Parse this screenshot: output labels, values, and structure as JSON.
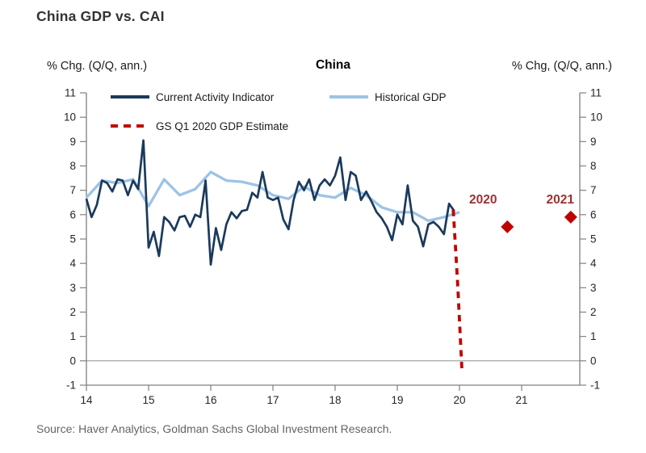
{
  "header": {
    "title": "China GDP vs. CAI"
  },
  "chart": {
    "panel_title": "China",
    "left_axis_title": "% Chg. (Q/Q, ann.)",
    "right_axis_title": "% Chg, (Q/Q, ann.)",
    "legend": [
      {
        "label": "Current Activity Indicator",
        "color": "#1a3a5c",
        "style": "solid"
      },
      {
        "label": "Historical GDP",
        "color": "#9dc3e6",
        "style": "solid"
      },
      {
        "label": "GS Q1 2020 GDP Estimate",
        "color": "#c00000",
        "style": "dashed"
      }
    ],
    "colors": {
      "axis": "#808080",
      "zero_line": "#9a9a9a",
      "tick_label": "#262626",
      "marker_label": "#9c3234"
    }
  },
  "chart_data": {
    "type": "line",
    "title": "China",
    "ylabel_left": "% Chg. (Q/Q, ann.)",
    "ylabel_right": "% Chg, (Q/Q, ann.)",
    "ylim": [
      -1,
      11
    ],
    "xlim": [
      14,
      21.94
    ],
    "y_ticks": [
      -1,
      0,
      1,
      2,
      3,
      4,
      5,
      6,
      7,
      8,
      9,
      10,
      11
    ],
    "x_ticks": [
      14,
      15,
      16,
      17,
      18,
      19,
      20,
      21
    ],
    "grid": false,
    "legend_position": "top-left-inside",
    "series": [
      {
        "name": "Current Activity Indicator",
        "color": "#1a3a5c",
        "dashed": false,
        "x": [
          14,
          14.083,
          14.167,
          14.25,
          14.333,
          14.417,
          14.5,
          14.583,
          14.667,
          14.75,
          14.833,
          14.917,
          15,
          15.083,
          15.167,
          15.25,
          15.333,
          15.417,
          15.5,
          15.583,
          15.667,
          15.75,
          15.833,
          15.917,
          16,
          16.083,
          16.167,
          16.25,
          16.333,
          16.417,
          16.5,
          16.583,
          16.667,
          16.75,
          16.833,
          16.917,
          17,
          17.083,
          17.167,
          17.25,
          17.333,
          17.417,
          17.5,
          17.583,
          17.667,
          17.75,
          17.833,
          17.917,
          18,
          18.083,
          18.167,
          18.25,
          18.333,
          18.417,
          18.5,
          18.583,
          18.667,
          18.75,
          18.833,
          18.917,
          19,
          19.083,
          19.167,
          19.25,
          19.333,
          19.417,
          19.5,
          19.583,
          19.667,
          19.75,
          19.833,
          19.917
        ],
        "values": [
          6.65,
          5.9,
          6.4,
          7.4,
          7.3,
          6.95,
          7.45,
          7.4,
          6.8,
          7.4,
          7.05,
          9.05,
          4.65,
          5.3,
          4.3,
          5.9,
          5.7,
          5.35,
          5.9,
          5.95,
          5.5,
          6.0,
          5.9,
          7.4,
          3.95,
          5.45,
          4.55,
          5.6,
          6.1,
          5.85,
          6.15,
          6.2,
          6.9,
          6.7,
          7.75,
          6.7,
          6.6,
          6.7,
          5.8,
          5.4,
          6.6,
          7.35,
          7.0,
          7.45,
          6.6,
          7.2,
          7.45,
          7.2,
          7.6,
          8.35,
          6.6,
          7.75,
          7.6,
          6.6,
          6.95,
          6.55,
          6.1,
          5.85,
          5.5,
          4.95,
          6.0,
          5.6,
          7.2,
          5.75,
          5.5,
          4.7,
          5.6,
          5.7,
          5.5,
          5.2,
          6.45,
          6.15
        ]
      },
      {
        "name": "Historical GDP",
        "color": "#9dc3e6",
        "dashed": false,
        "x": [
          14,
          14.25,
          14.5,
          14.75,
          15,
          15.25,
          15.5,
          15.75,
          16,
          16.25,
          16.5,
          16.75,
          17,
          17.25,
          17.5,
          17.75,
          18,
          18.25,
          18.5,
          18.75,
          19,
          19.25,
          19.5,
          19.75,
          20
        ],
        "values": [
          6.7,
          7.4,
          7.3,
          7.45,
          6.35,
          7.45,
          6.8,
          7.05,
          7.75,
          7.4,
          7.35,
          7.2,
          6.8,
          6.65,
          7.15,
          6.8,
          6.7,
          7.1,
          6.8,
          6.3,
          6.1,
          6.1,
          5.75,
          5.9,
          6.1
        ]
      },
      {
        "name": "GS Q1 2020 GDP Estimate",
        "color": "#c00000",
        "dashed": true,
        "x": [
          19.9,
          19.97,
          20.04
        ],
        "values": [
          6.2,
          3.2,
          -0.4
        ]
      }
    ],
    "point_markers": [
      {
        "label": "2020",
        "x": 20.77,
        "value": 5.5,
        "label_x": 20.38,
        "label_value": 6.62,
        "shape": "diamond",
        "color": "#c00000"
      },
      {
        "label": "2021",
        "x": 21.79,
        "value": 5.9,
        "label_x": 21.62,
        "label_value": 6.62,
        "shape": "diamond",
        "color": "#c00000"
      }
    ]
  },
  "footer": {
    "source": "Source: Haver Analytics, Goldman Sachs Global Investment Research."
  }
}
